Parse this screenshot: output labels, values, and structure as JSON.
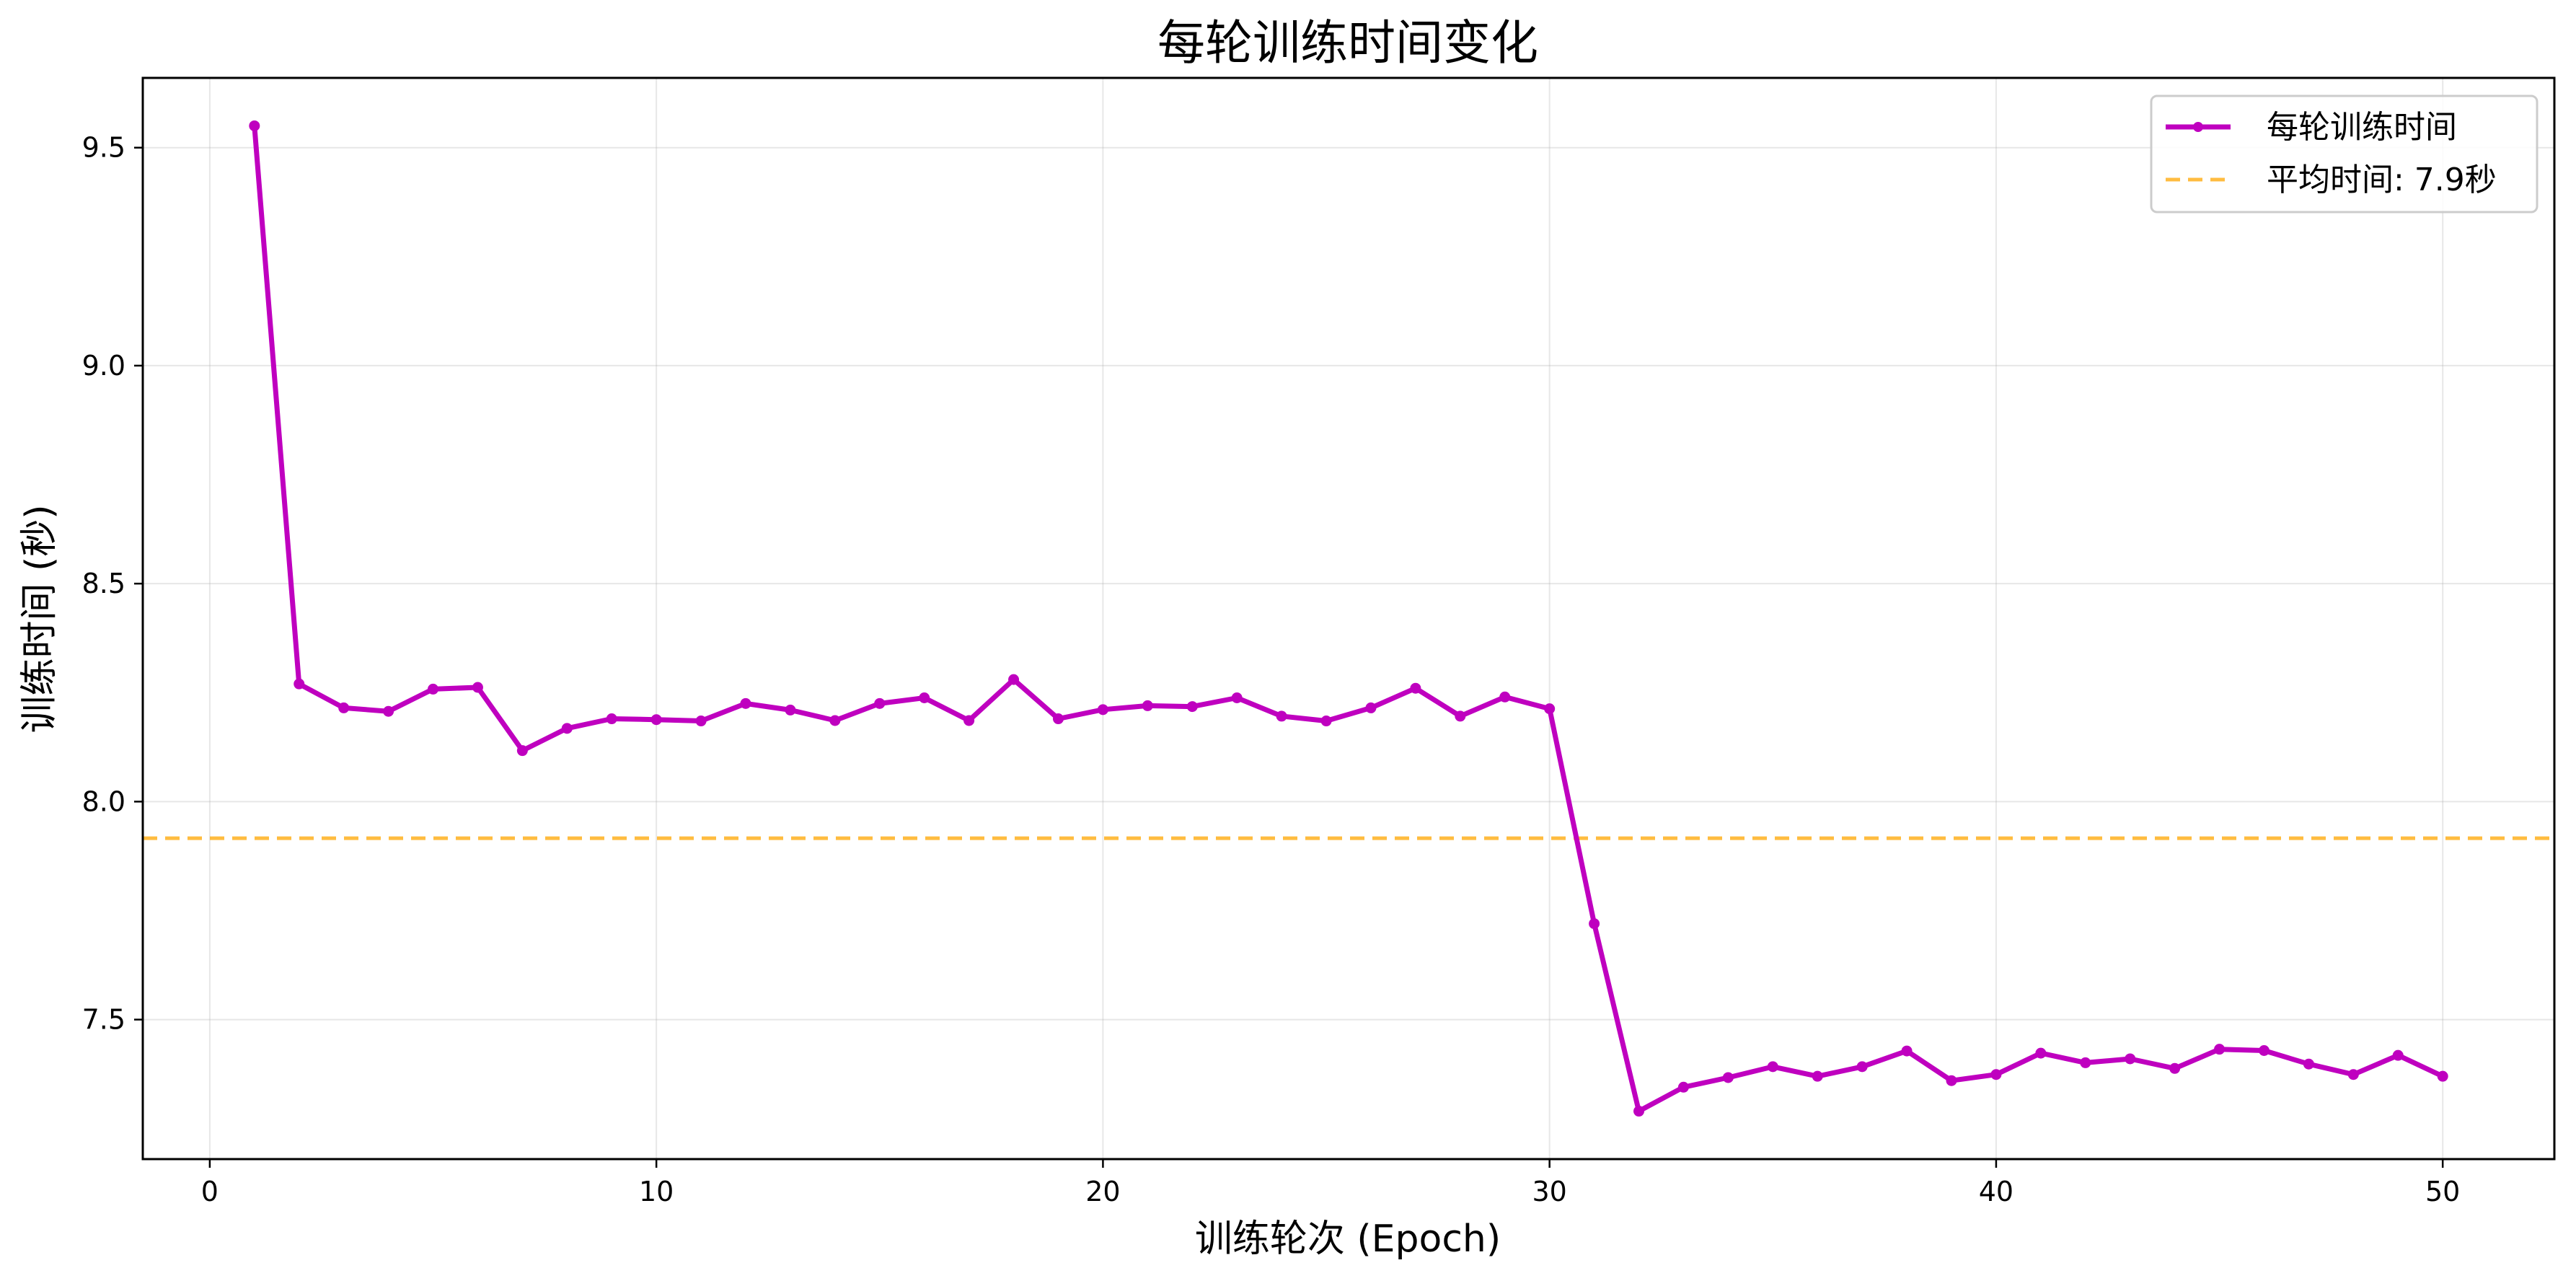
{
  "chart_data": {
    "type": "line",
    "title": "每轮训练时间变化",
    "xlabel": "训练轮次 (Epoch)",
    "ylabel": "训练时间 (秒)",
    "xlim": [
      -1.5,
      52.5
    ],
    "ylim": [
      7.18,
      9.66
    ],
    "xticks": [
      0,
      10,
      20,
      30,
      40,
      50
    ],
    "yticks": [
      7.5,
      8.0,
      8.5,
      9.0,
      9.5
    ],
    "xtick_labels": [
      "0",
      "10",
      "20",
      "30",
      "40",
      "50"
    ],
    "ytick_labels": [
      "7.5",
      "8.0",
      "8.5",
      "9.0",
      "9.5"
    ],
    "grid": true,
    "legend_position": "top-right",
    "colors": {
      "series": "#bf00bf",
      "mean": "#ffa500"
    },
    "series": [
      {
        "name": "每轮训练时间",
        "x": [
          1,
          2,
          3,
          4,
          5,
          6,
          7,
          8,
          9,
          10,
          11,
          12,
          13,
          14,
          15,
          16,
          17,
          18,
          19,
          20,
          21,
          22,
          23,
          24,
          25,
          26,
          27,
          28,
          29,
          30,
          31,
          32,
          33,
          34,
          35,
          36,
          37,
          38,
          39,
          40,
          41,
          42,
          43,
          44,
          45,
          46,
          47,
          48,
          49,
          50
        ],
        "values": [
          9.55,
          8.27,
          8.215,
          8.207,
          8.258,
          8.262,
          8.117,
          8.168,
          8.19,
          8.188,
          8.185,
          8.225,
          8.21,
          8.186,
          8.225,
          8.238,
          8.186,
          8.28,
          8.19,
          8.211,
          8.22,
          8.218,
          8.238,
          8.196,
          8.185,
          8.215,
          8.26,
          8.196,
          8.24,
          8.213,
          7.72,
          7.29,
          7.345,
          7.367,
          7.392,
          7.37,
          7.392,
          7.428,
          7.36,
          7.374,
          7.423,
          7.401,
          7.41,
          7.388,
          7.432,
          7.429,
          7.398,
          7.374,
          7.418,
          7.37
        ]
      }
    ],
    "reference_line": {
      "name": "平均时间: 7.9秒",
      "y": 7.916,
      "style": "dashed"
    }
  }
}
